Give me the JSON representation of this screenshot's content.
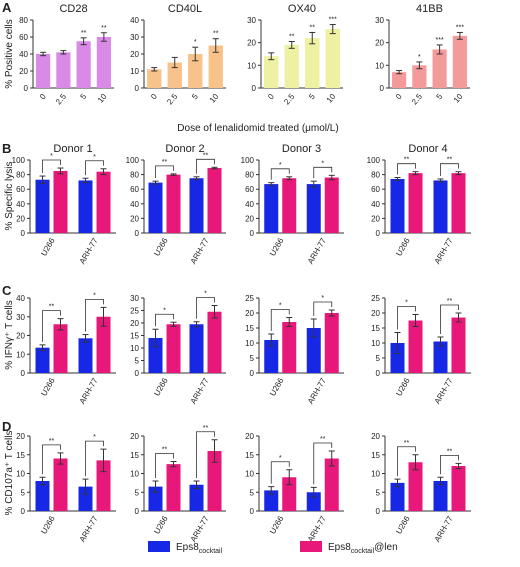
{
  "panel_labels": [
    "A",
    "B",
    "C",
    "D"
  ],
  "colors": {
    "blue": "#1727e6",
    "pink": "#e8177a",
    "cd28": "#d88ae6",
    "cd40l": "#f7c38b",
    "ox40": "#eef0a2",
    "bb41": "#f59a9a",
    "axis": "#333333"
  },
  "panel_a_xlabel": "Dose of lenalidomid treated (μmol/L)",
  "panel_a_ylabel": "% Positive cells",
  "panel_b_ylabel": "% Specific lysis",
  "panel_c_ylabel": "% IFNγ⁺ T cells",
  "panel_d_ylabel": "% CD107a⁺ T cells",
  "legend": [
    {
      "label": "Eps8",
      "sub": "cocktail",
      "suffix": "",
      "color": "#1727e6"
    },
    {
      "label": "Eps8",
      "sub": "cocktail",
      "suffix": "@len",
      "color": "#e8177a"
    }
  ],
  "chart_data": [
    {
      "panel": "A",
      "type": "bar",
      "title": "CD28",
      "categories": [
        "0",
        "2.5",
        "5",
        "10"
      ],
      "values": [
        40,
        42,
        55,
        60
      ],
      "errors": [
        2,
        2,
        4,
        5
      ],
      "sig": [
        "",
        "",
        "**",
        "**"
      ],
      "ylim": [
        0,
        80
      ],
      "yticks": [
        0,
        20,
        40,
        60,
        80
      ],
      "color": "#d88ae6"
    },
    {
      "panel": "A",
      "type": "bar",
      "title": "CD40L",
      "categories": [
        "0",
        "2.5",
        "5",
        "10"
      ],
      "values": [
        11,
        15,
        20,
        25
      ],
      "errors": [
        1,
        3,
        4,
        4
      ],
      "sig": [
        "",
        "",
        "*",
        "**"
      ],
      "ylim": [
        0,
        40
      ],
      "yticks": [
        0,
        10,
        20,
        30,
        40
      ],
      "color": "#f7c38b"
    },
    {
      "panel": "A",
      "type": "bar",
      "title": "OX40",
      "categories": [
        "0",
        "2.5",
        "5",
        "10"
      ],
      "values": [
        14,
        19,
        22,
        26
      ],
      "errors": [
        1.5,
        1.5,
        2.5,
        2
      ],
      "sig": [
        "",
        "**",
        "**",
        "***"
      ],
      "ylim": [
        0,
        30
      ],
      "yticks": [
        0,
        10,
        20,
        30
      ],
      "color": "#eef0a2"
    },
    {
      "panel": "A",
      "type": "bar",
      "title": "41BB",
      "categories": [
        "0",
        "2.5",
        "5",
        "10"
      ],
      "values": [
        7,
        10,
        17,
        23
      ],
      "errors": [
        0.7,
        1.5,
        2,
        1.5
      ],
      "sig": [
        "",
        "*",
        "***",
        "***"
      ],
      "ylim": [
        0,
        30
      ],
      "yticks": [
        0,
        10,
        20,
        30
      ],
      "color": "#f59a9a"
    },
    {
      "panel": "B",
      "type": "bar",
      "title": "Donor 1",
      "categories": [
        "U266",
        "ARH-77"
      ],
      "series": [
        {
          "values": [
            73,
            72
          ],
          "errors": [
            5,
            3
          ]
        },
        {
          "values": [
            85,
            84
          ],
          "errors": [
            4,
            4
          ]
        }
      ],
      "sig": [
        "*",
        "*"
      ],
      "ylim": [
        0,
        100
      ],
      "yticks": [
        0,
        20,
        40,
        60,
        80,
        100
      ]
    },
    {
      "panel": "B",
      "type": "bar",
      "title": "Donor 2",
      "categories": [
        "U266",
        "ARH-77"
      ],
      "series": [
        {
          "values": [
            69,
            75
          ],
          "errors": [
            2,
            2
          ]
        },
        {
          "values": [
            80,
            89
          ],
          "errors": [
            1,
            1
          ]
        }
      ],
      "sig": [
        "**",
        "**"
      ],
      "ylim": [
        0,
        100
      ],
      "yticks": [
        0,
        20,
        40,
        60,
        80,
        100
      ]
    },
    {
      "panel": "B",
      "type": "bar",
      "title": "Donor 3",
      "categories": [
        "U266",
        "ARH-77"
      ],
      "series": [
        {
          "values": [
            67,
            67
          ],
          "errors": [
            2,
            4
          ]
        },
        {
          "values": [
            75,
            76
          ],
          "errors": [
            2,
            3
          ]
        }
      ],
      "sig": [
        "*",
        "*"
      ],
      "ylim": [
        0,
        100
      ],
      "yticks": [
        0,
        20,
        40,
        60,
        80,
        100
      ]
    },
    {
      "panel": "B",
      "type": "bar",
      "title": "Donor 4",
      "categories": [
        "U266",
        "ARH-77"
      ],
      "series": [
        {
          "values": [
            74,
            72
          ],
          "errors": [
            2,
            2
          ]
        },
        {
          "values": [
            82,
            82
          ],
          "errors": [
            2,
            2
          ]
        }
      ],
      "sig": [
        "**",
        "**"
      ],
      "ylim": [
        0,
        100
      ],
      "yticks": [
        0,
        20,
        40,
        60,
        80,
        100
      ]
    },
    {
      "panel": "C",
      "type": "bar",
      "title": "",
      "categories": [
        "U266",
        "ARH-77"
      ],
      "series": [
        {
          "values": [
            13.5,
            18.5
          ],
          "errors": [
            1.5,
            2
          ]
        },
        {
          "values": [
            26,
            30
          ],
          "errors": [
            3,
            5
          ]
        }
      ],
      "sig": [
        "**",
        "*"
      ],
      "ylim": [
        0,
        40
      ],
      "yticks": [
        0,
        10,
        20,
        30,
        40
      ]
    },
    {
      "panel": "C",
      "type": "bar",
      "title": "",
      "categories": [
        "U266",
        "ARH-77"
      ],
      "series": [
        {
          "values": [
            14,
            19.5
          ],
          "errors": [
            3.5,
            1
          ]
        },
        {
          "values": [
            19.5,
            24.5
          ],
          "errors": [
            0.8,
            2.5
          ]
        }
      ],
      "sig": [
        "*",
        "*"
      ],
      "ylim": [
        0,
        30
      ],
      "yticks": [
        0,
        5,
        10,
        15,
        20,
        25,
        30
      ]
    },
    {
      "panel": "C",
      "type": "bar",
      "title": "",
      "categories": [
        "U266",
        "ARH-77"
      ],
      "series": [
        {
          "values": [
            11,
            15
          ],
          "errors": [
            2,
            3
          ]
        },
        {
          "values": [
            17,
            20
          ],
          "errors": [
            1.5,
            1
          ]
        }
      ],
      "sig": [
        "*",
        "*"
      ],
      "ylim": [
        0,
        25
      ],
      "yticks": [
        0,
        5,
        10,
        15,
        20,
        25
      ]
    },
    {
      "panel": "C",
      "type": "bar",
      "title": "",
      "categories": [
        "U266",
        "ARH-77"
      ],
      "series": [
        {
          "values": [
            10,
            10.5
          ],
          "errors": [
            3.5,
            1.5
          ]
        },
        {
          "values": [
            17.5,
            18.5
          ],
          "errors": [
            2,
            1.5
          ]
        }
      ],
      "sig": [
        "*",
        "**"
      ],
      "ylim": [
        0,
        25
      ],
      "yticks": [
        0,
        5,
        10,
        15,
        20,
        25
      ]
    },
    {
      "panel": "D",
      "type": "bar",
      "title": "",
      "categories": [
        "U266",
        "ARH-77"
      ],
      "series": [
        {
          "values": [
            8,
            6.5
          ],
          "errors": [
            1,
            2
          ]
        },
        {
          "values": [
            14,
            13.5
          ],
          "errors": [
            1.5,
            3
          ]
        }
      ],
      "sig": [
        "**",
        "*"
      ],
      "ylim": [
        0,
        20
      ],
      "yticks": [
        0,
        5,
        10,
        15,
        20
      ]
    },
    {
      "panel": "D",
      "type": "bar",
      "title": "",
      "categories": [
        "U266",
        "ARH-77"
      ],
      "series": [
        {
          "values": [
            6.5,
            7
          ],
          "errors": [
            1.5,
            1
          ]
        },
        {
          "values": [
            12.5,
            16
          ],
          "errors": [
            0.7,
            3
          ]
        }
      ],
      "sig": [
        "**",
        "**"
      ],
      "ylim": [
        0,
        20
      ],
      "yticks": [
        0,
        5,
        10,
        15,
        20
      ]
    },
    {
      "panel": "D",
      "type": "bar",
      "title": "",
      "categories": [
        "U266",
        "ARH-77"
      ],
      "series": [
        {
          "values": [
            5.5,
            5
          ],
          "errors": [
            1,
            1.3
          ]
        },
        {
          "values": [
            9,
            14
          ],
          "errors": [
            2,
            2
          ]
        }
      ],
      "sig": [
        "*",
        "**"
      ],
      "ylim": [
        0,
        20
      ],
      "yticks": [
        0,
        5,
        10,
        15,
        20
      ]
    },
    {
      "panel": "D",
      "type": "bar",
      "title": "",
      "categories": [
        "U266",
        "ARH-77"
      ],
      "series": [
        {
          "values": [
            7.5,
            8
          ],
          "errors": [
            1,
            1
          ]
        },
        {
          "values": [
            13,
            12
          ],
          "errors": [
            2,
            0.7
          ]
        }
      ],
      "sig": [
        "**",
        "**"
      ],
      "ylim": [
        0,
        20
      ],
      "yticks": [
        0,
        5,
        10,
        15,
        20
      ]
    }
  ]
}
